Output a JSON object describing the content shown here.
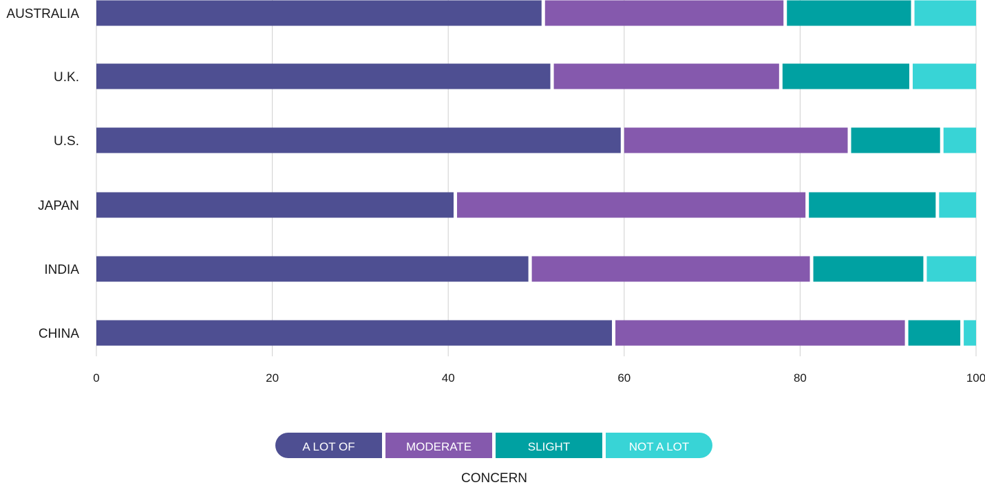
{
  "chart_data": {
    "type": "bar",
    "orientation": "horizontal",
    "stacked": true,
    "categories": [
      "AUSTRALIA",
      "U.K.",
      "U.S.",
      "JAPAN",
      "INDIA",
      "CHINA"
    ],
    "series": [
      {
        "name": "A LOT OF",
        "color": "#4e4f92",
        "values": [
          51,
          52,
          60,
          41,
          49.5,
          59
        ]
      },
      {
        "name": "MODERATE",
        "color": "#8559ad",
        "values": [
          27.5,
          26,
          25.8,
          40,
          32,
          33.3
        ]
      },
      {
        "name": "SLIGHT",
        "color": "#00a1a2",
        "values": [
          14.5,
          14.8,
          10.5,
          14.8,
          12.9,
          6.3
        ]
      },
      {
        "name": "NOT A LOT",
        "color": "#38d4d6",
        "values": [
          7,
          7.2,
          3.7,
          4.2,
          5.6,
          1.4
        ]
      }
    ],
    "xlim": [
      0,
      100
    ],
    "xticks": [
      0,
      20,
      40,
      60,
      80,
      100
    ],
    "grid": true,
    "legend_placement": "bottom-center",
    "legend_title": "CONCERN"
  }
}
